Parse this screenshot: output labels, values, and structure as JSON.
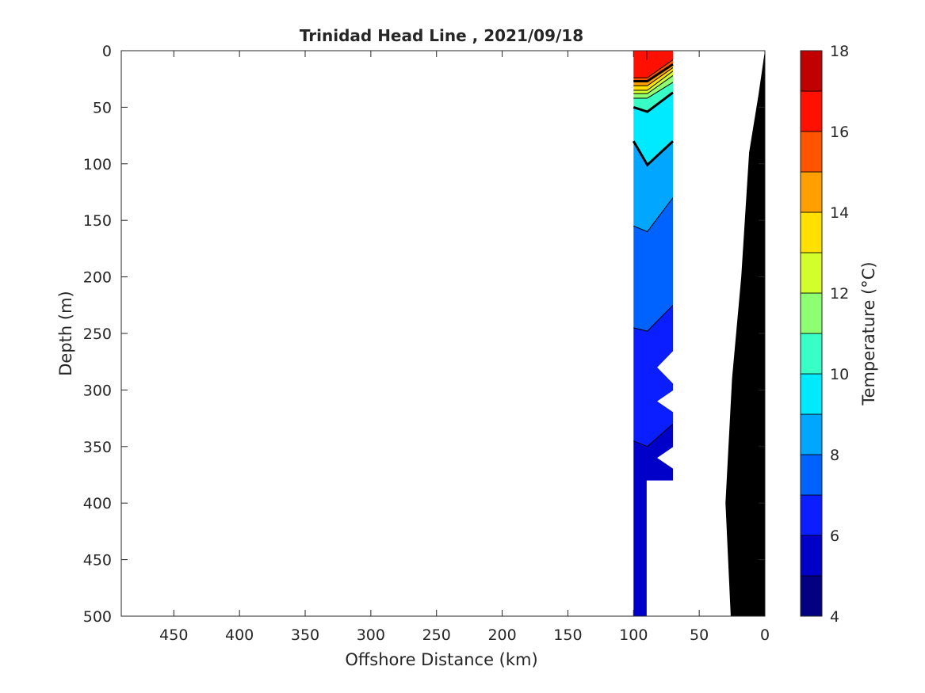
{
  "chart_data": {
    "type": "heatmap",
    "title": "Trinidad Head Line , 2021/09/18",
    "xlabel": "Offshore Distance (km)",
    "ylabel": "Depth (m)",
    "xlim": [
      490,
      0
    ],
    "ylim": [
      0,
      500
    ],
    "x_reversed": true,
    "y_reversed": true,
    "xticks": [
      450,
      400,
      350,
      300,
      250,
      200,
      150,
      100,
      50,
      0
    ],
    "yticks": [
      0,
      50,
      100,
      150,
      200,
      250,
      300,
      350,
      400,
      450,
      500
    ],
    "colorbar": {
      "label": "Temperature (°C)",
      "range": [
        4,
        18
      ],
      "ticks": [
        4,
        6,
        8,
        10,
        12,
        14,
        16,
        18
      ],
      "levels": [
        {
          "from": 4,
          "to": 5,
          "color": "#000080"
        },
        {
          "from": 5,
          "to": 6,
          "color": "#0000c8"
        },
        {
          "from": 6,
          "to": 7,
          "color": "#0a1eff"
        },
        {
          "from": 7,
          "to": 8,
          "color": "#0063ff"
        },
        {
          "from": 8,
          "to": 9,
          "color": "#00a6ff"
        },
        {
          "from": 9,
          "to": 10,
          "color": "#00eaff"
        },
        {
          "from": 10,
          "to": 11,
          "color": "#38ffc6"
        },
        {
          "from": 11,
          "to": 12,
          "color": "#8eff70"
        },
        {
          "from": 12,
          "to": 13,
          "color": "#d2ff2c"
        },
        {
          "from": 13,
          "to": 14,
          "color": "#ffe000"
        },
        {
          "from": 14,
          "to": 15,
          "color": "#ffa000"
        },
        {
          "from": 15,
          "to": 16,
          "color": "#ff5500"
        },
        {
          "from": 16,
          "to": 17,
          "color": "#ff1000"
        },
        {
          "from": 17,
          "to": 18,
          "color": "#c00000"
        }
      ]
    },
    "section": {
      "x_range_km": [
        100,
        70
      ],
      "bands": [
        {
          "temp": 16.5,
          "color": "#ff1000",
          "left": [
            0,
            0
          ],
          "right": [
            0,
            0
          ]
        },
        {
          "temp": 16,
          "color": "#ff5500",
          "left": [
            24,
            24
          ],
          "right": [
            8,
            8
          ]
        },
        {
          "temp": 15,
          "color": "#ffa000",
          "left": [
            27,
            27
          ],
          "right": [
            12,
            12
          ]
        },
        {
          "temp": 14,
          "color": "#ffe000",
          "left": [
            31,
            31
          ],
          "right": [
            15,
            15
          ]
        },
        {
          "temp": 13,
          "color": "#d2ff2c",
          "left": [
            35,
            35
          ],
          "right": [
            18,
            18
          ]
        },
        {
          "temp": 12,
          "color": "#8eff70",
          "left": [
            38,
            38
          ],
          "right": [
            22,
            22
          ]
        },
        {
          "temp": 11,
          "color": "#38ffc6",
          "left": [
            42,
            42
          ],
          "right": [
            28,
            28
          ]
        },
        {
          "temp": 10,
          "color": "#00eaff",
          "left": [
            50,
            54
          ],
          "right": [
            37,
            37
          ]
        },
        {
          "temp": 9,
          "color": "#00a6ff",
          "left": [
            80,
            101
          ],
          "right": [
            80,
            80
          ]
        },
        {
          "temp": 8,
          "color": "#0063ff",
          "left": [
            155,
            160
          ],
          "right": [
            130,
            130
          ]
        },
        {
          "temp": 7,
          "color": "#0a1eff",
          "left": [
            245,
            248
          ],
          "right": [
            225,
            225
          ]
        },
        {
          "temp": 6,
          "color": "#0000c8",
          "left": [
            345,
            350
          ],
          "right": [
            330,
            330
          ]
        }
      ],
      "contour_temps": [
        15,
        14,
        13,
        12,
        11,
        10,
        9,
        8,
        7
      ]
    },
    "bathymetry": {
      "color": "#000000",
      "points": [
        [
          0,
          0
        ],
        [
          5,
          40
        ],
        [
          12,
          90
        ],
        [
          18,
          200
        ],
        [
          25,
          290
        ],
        [
          30,
          400
        ],
        [
          26,
          500
        ]
      ]
    }
  }
}
